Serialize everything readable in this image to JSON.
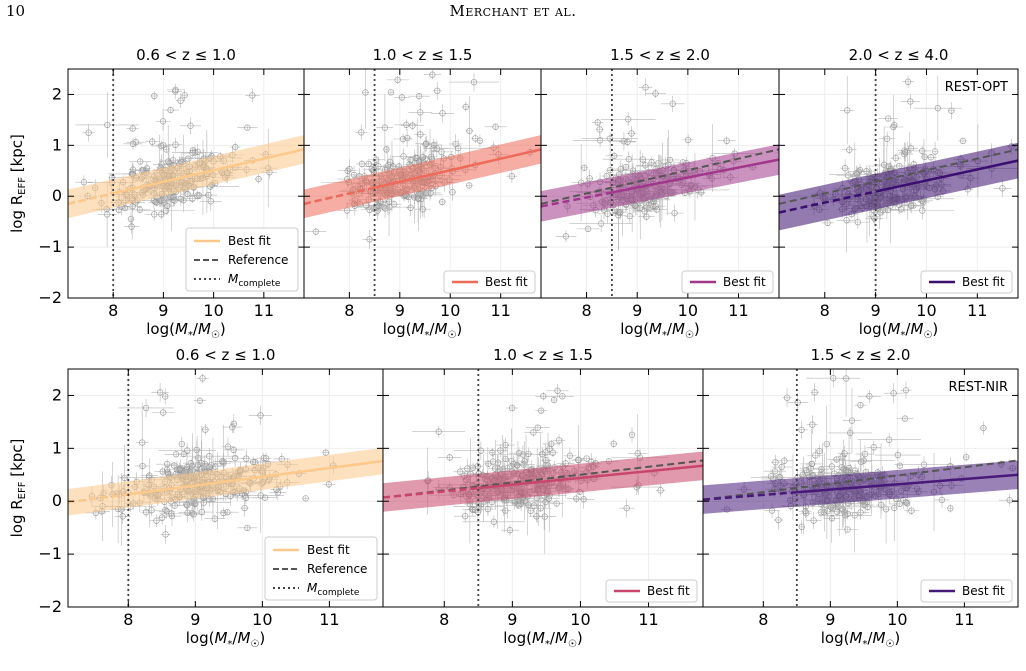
{
  "page": {
    "number": "10",
    "running_head": "Merchant et al."
  },
  "figure": {
    "xlabel": "log(M*/M☉)",
    "ylabel": "log R_EFF [kpc]",
    "y_ticks": [
      2,
      1,
      0,
      -1,
      -2
    ],
    "x_ticks": [
      8,
      9,
      10,
      11
    ],
    "legend_labels": {
      "best_fit": "Best fit",
      "reference": "Reference",
      "mcomplete": "M_complete"
    },
    "band_labels": {
      "opt": "REST-OPT",
      "nir": "REST-NIR"
    },
    "colors": {
      "points": "#8c8c8c",
      "reference": "#555555",
      "z1": "#fcc98a",
      "z2": "#ef6a5a",
      "z3": "#a1378b",
      "z4": "#3b0f70",
      "nir2": "#c8456b",
      "nir3": "#471a7a"
    }
  },
  "chart_data": [
    {
      "type": "scatter",
      "row": "REST-OPT",
      "title": "0.6 < z ≤ 1.0",
      "xlim": [
        7.1,
        11.8
      ],
      "ylim": [
        -2,
        2.5
      ],
      "mcomplete": 8.0,
      "best_fit": [
        [
          7.1,
          -0.15
        ],
        [
          11.8,
          0.92
        ]
      ],
      "band_halfwidth": 0.28,
      "reference": [
        [
          7.1,
          -0.15
        ],
        [
          11.8,
          0.92
        ]
      ],
      "legend": [
        "Best fit",
        "Reference",
        "M_complete"
      ],
      "color_key": "z1",
      "points_center": [
        9.0,
        0.25
      ]
    },
    {
      "type": "scatter",
      "row": "REST-OPT",
      "title": "1.0 < z ≤ 1.5",
      "xlim": [
        7.1,
        11.8
      ],
      "ylim": [
        -2,
        2.5
      ],
      "mcomplete": 8.5,
      "best_fit": [
        [
          7.1,
          -0.15
        ],
        [
          11.8,
          0.92
        ]
      ],
      "band_halfwidth": 0.28,
      "reference": [
        [
          7.1,
          -0.15
        ],
        [
          11.8,
          0.92
        ]
      ],
      "legend": [
        "Best fit"
      ],
      "color_key": "z2",
      "points_center": [
        9.0,
        0.25
      ]
    },
    {
      "type": "scatter",
      "row": "REST-OPT",
      "title": "1.5 < z ≤ 2.0",
      "xlim": [
        7.1,
        11.8
      ],
      "ylim": [
        -2,
        2.5
      ],
      "mcomplete": 8.5,
      "best_fit": [
        [
          7.1,
          -0.2
        ],
        [
          11.8,
          0.72
        ]
      ],
      "band_halfwidth": 0.3,
      "reference": [
        [
          7.1,
          -0.15
        ],
        [
          11.8,
          0.92
        ]
      ],
      "legend": [
        "Best fit"
      ],
      "color_key": "z3",
      "points_center": [
        9.1,
        0.25
      ]
    },
    {
      "type": "scatter",
      "row": "REST-OPT",
      "title": "2.0 < z ≤ 4.0",
      "xlim": [
        7.1,
        11.8
      ],
      "ylim": [
        -2,
        2.5
      ],
      "mcomplete": 9.0,
      "best_fit": [
        [
          7.1,
          -0.32
        ],
        [
          11.8,
          0.7
        ]
      ],
      "band_halfwidth": 0.35,
      "reference": [
        [
          7.1,
          -0.15
        ],
        [
          11.8,
          0.92
        ]
      ],
      "legend": [
        "Best fit"
      ],
      "color_key": "z4",
      "label": "REST-OPT",
      "points_center": [
        9.2,
        0.2
      ]
    },
    {
      "type": "scatter",
      "row": "REST-NIR",
      "title": "0.6 < z ≤ 1.0",
      "xlim": [
        7.1,
        11.8
      ],
      "ylim": [
        -2,
        2.5
      ],
      "mcomplete": 8.0,
      "best_fit": [
        [
          7.1,
          -0.02
        ],
        [
          11.8,
          0.76
        ]
      ],
      "band_halfwidth": 0.25,
      "reference": [
        [
          7.1,
          -0.02
        ],
        [
          11.8,
          0.76
        ]
      ],
      "legend": [
        "Best fit",
        "Reference",
        "M_complete"
      ],
      "color_key": "z1",
      "points_center": [
        9.0,
        0.25
      ]
    },
    {
      "type": "scatter",
      "row": "REST-NIR",
      "title": "1.0 < z ≤ 1.5",
      "xlim": [
        7.1,
        11.8
      ],
      "ylim": [
        -2,
        2.5
      ],
      "mcomplete": 8.5,
      "best_fit": [
        [
          7.1,
          0.07
        ],
        [
          11.8,
          0.67
        ]
      ],
      "band_halfwidth": 0.27,
      "reference": [
        [
          7.1,
          0.07
        ],
        [
          11.8,
          0.77
        ]
      ],
      "legend": [
        "Best fit"
      ],
      "color_key": "nir2",
      "points_center": [
        9.1,
        0.3
      ]
    },
    {
      "type": "scatter",
      "row": "REST-NIR",
      "title": "1.5 < z ≤ 2.0",
      "xlim": [
        7.1,
        11.8
      ],
      "ylim": [
        -2,
        2.5
      ],
      "mcomplete": 8.5,
      "best_fit": [
        [
          7.1,
          0.03
        ],
        [
          11.8,
          0.5
        ]
      ],
      "band_halfwidth": 0.27,
      "reference": [
        [
          7.1,
          0.03
        ],
        [
          11.8,
          0.77
        ]
      ],
      "legend": [
        "Best fit"
      ],
      "color_key": "nir3",
      "label": "REST-NIR",
      "points_center": [
        9.2,
        0.3
      ]
    }
  ]
}
